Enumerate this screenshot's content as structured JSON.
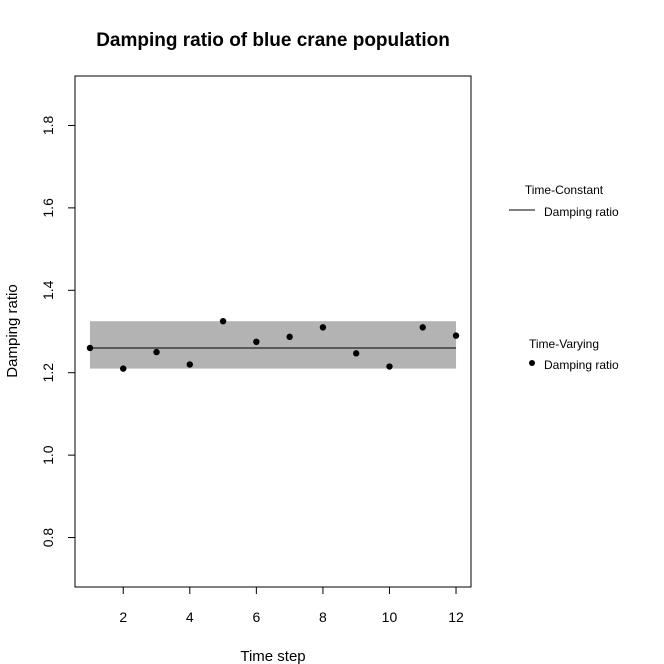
{
  "chart_data": {
    "type": "scatter",
    "title": "Damping ratio of blue crane population",
    "xlabel": "Time step",
    "ylabel": "Damping ratio",
    "xlim": [
      0.55,
      12.45
    ],
    "ylim": [
      0.68,
      1.92
    ],
    "x_ticks": [
      2,
      4,
      6,
      8,
      10,
      12
    ],
    "y_ticks": [
      0.8,
      1.0,
      1.2,
      1.4,
      1.6,
      1.8
    ],
    "grid": false,
    "constant": {
      "value": 1.26,
      "band_lower": 1.21,
      "band_upper": 1.325,
      "x_range": [
        1,
        12
      ],
      "band_color": "#b3b3b3",
      "line_color": "#000000"
    },
    "series": [
      {
        "name": "Damping ratio",
        "x": [
          1,
          2,
          3,
          4,
          5,
          6,
          7,
          8,
          9,
          10,
          11,
          12
        ],
        "y": [
          1.26,
          1.21,
          1.25,
          1.22,
          1.325,
          1.275,
          1.287,
          1.31,
          1.247,
          1.215,
          1.31,
          1.29
        ],
        "color": "#000000"
      }
    ],
    "legends": [
      {
        "title": "Time-Constant",
        "entry": "Damping ratio",
        "symbol": "line",
        "placement": "right"
      },
      {
        "title": "Time-Varying",
        "entry": "Damping ratio",
        "symbol": "point",
        "placement": "right"
      }
    ]
  }
}
